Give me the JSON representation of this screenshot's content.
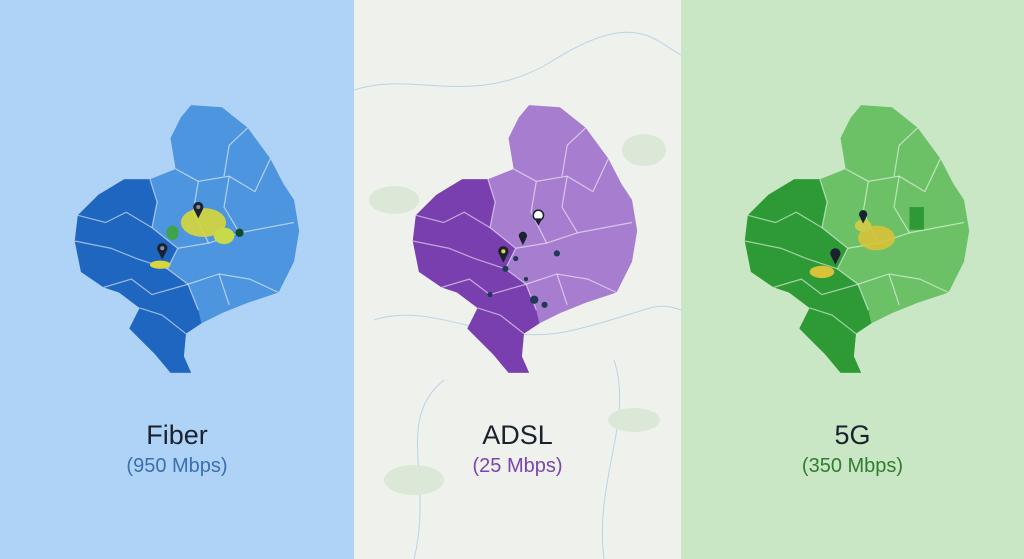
{
  "panels": [
    {
      "title": "Fiber",
      "speed": "(950 Mbps)",
      "colors": {
        "background": "#afd3f6",
        "dark": "#1f66c0",
        "light": "#4d95de",
        "speed_text": "#3a6fb0",
        "hotspot": "#d8d63a"
      }
    },
    {
      "title": "ADSL",
      "speed": "(25 Mbps)",
      "colors": {
        "background": "#eef1ec",
        "dark": "#7a3fae",
        "light": "#a67dcf",
        "speed_text": "#7b45ae",
        "hotspot": "#1f3a55"
      }
    },
    {
      "title": "5G",
      "speed": "(350 Mbps)",
      "colors": {
        "background": "#c9e6c5",
        "dark": "#2e9a35",
        "light": "#6cc167",
        "speed_text": "#2f7d2f",
        "hotspot": "#d8c23a"
      }
    }
  ],
  "icons": [
    "map-pin-icon"
  ]
}
